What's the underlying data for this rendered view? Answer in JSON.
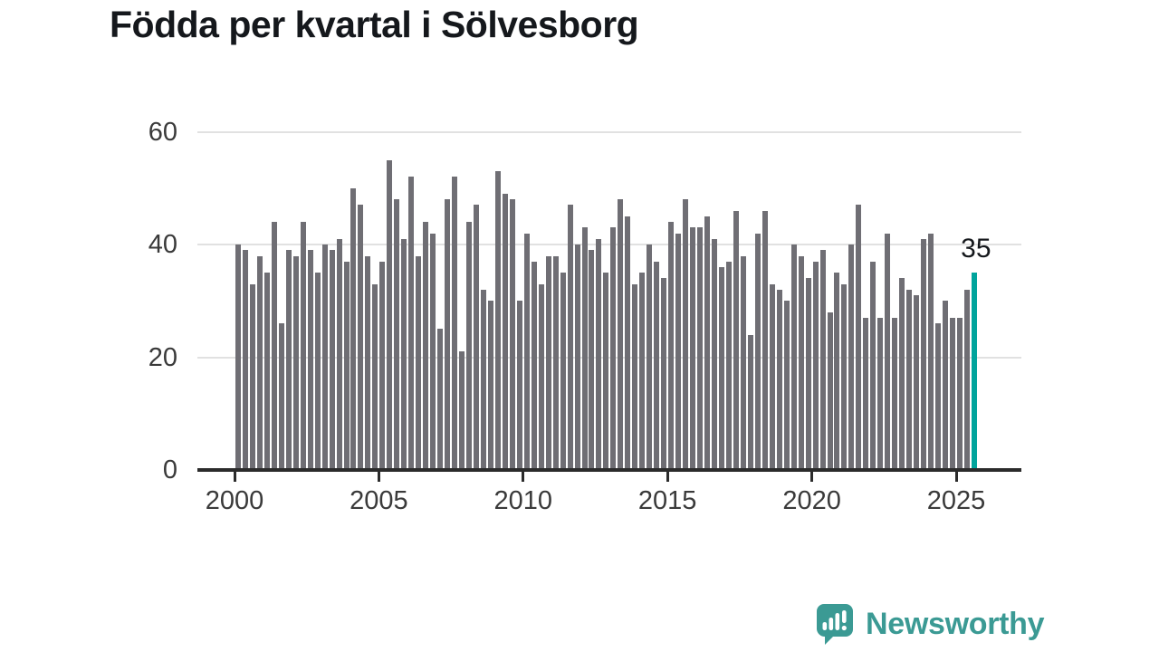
{
  "branding": {
    "logo_text": "Newsworthy",
    "logo_icon": "speech-bubble-bar-chart-icon"
  },
  "colors": {
    "bar": "#6f6e74",
    "highlight": "#00a49c",
    "grid": "#e1e1e1",
    "axis": "#2b2b2b",
    "tick_text": "#3a3a3a",
    "title_text": "#15181c",
    "logo": "#3b9a94",
    "background": "#ffffff"
  },
  "chart_data": {
    "type": "bar",
    "title": "Födda per kvartal i Sölvesborg",
    "xlabel": "",
    "ylabel": "",
    "x_unit": "quarter",
    "start_year": 2000,
    "start_quarter": 1,
    "n_quarters": 103,
    "grid": true,
    "legend": false,
    "ylim": [
      0,
      62
    ],
    "y_ticks": [
      0,
      20,
      40,
      60
    ],
    "x_tick_labels": [
      "2000",
      "2005",
      "2010",
      "2015",
      "2020",
      "2025"
    ],
    "values": [
      40,
      39,
      33,
      38,
      35,
      44,
      26,
      39,
      38,
      44,
      39,
      35,
      40,
      39,
      41,
      37,
      50,
      47,
      38,
      33,
      37,
      55,
      48,
      41,
      52,
      38,
      44,
      42,
      25,
      48,
      52,
      21,
      44,
      47,
      32,
      30,
      53,
      49,
      48,
      30,
      42,
      37,
      33,
      38,
      38,
      35,
      47,
      40,
      43,
      39,
      41,
      35,
      43,
      48,
      45,
      33,
      35,
      40,
      37,
      34,
      44,
      42,
      48,
      43,
      43,
      45,
      41,
      36,
      37,
      46,
      38,
      24,
      42,
      46,
      33,
      32,
      30,
      40,
      38,
      34,
      37,
      39,
      28,
      35,
      33,
      40,
      47,
      27,
      37,
      27,
      42,
      27,
      34,
      32,
      31,
      41,
      42,
      26,
      30,
      27,
      27,
      32,
      35
    ],
    "highlight_last": true,
    "highlight_label": "35"
  }
}
